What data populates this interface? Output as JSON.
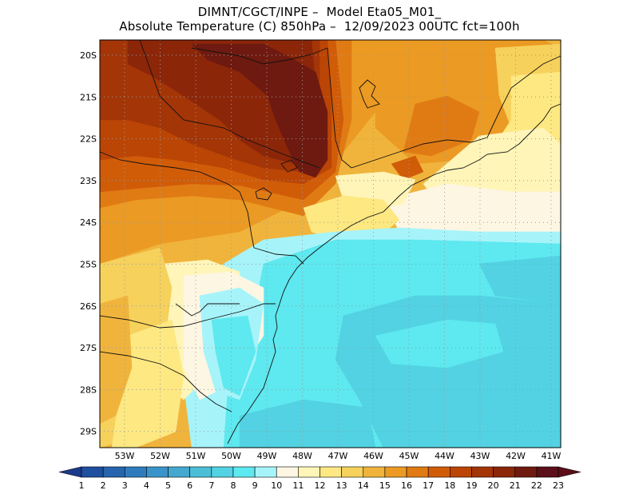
{
  "title": {
    "line1": "DIMNT/CGCT/INPE –  Model Eta05_M01_",
    "line2": "Absolute Temperature (C) 850hPa –  12/09/2023 00UTC fct=100h"
  },
  "map": {
    "lat_labels": [
      "20S",
      "21S",
      "22S",
      "23S",
      "24S",
      "25S",
      "26S",
      "27S",
      "28S",
      "29S"
    ],
    "lon_labels": [
      "53W",
      "52W",
      "51W",
      "50W",
      "49W",
      "48W",
      "47W",
      "46W",
      "45W",
      "44W",
      "43W",
      "42W",
      "41W"
    ]
  },
  "colorbar": {
    "levels": [
      "1",
      "2",
      "3",
      "4",
      "5",
      "6",
      "7",
      "8",
      "9",
      "10",
      "11",
      "12",
      "13",
      "14",
      "15",
      "16",
      "17",
      "18",
      "19",
      "20",
      "21",
      "22",
      "23"
    ],
    "colors": [
      "#1b3a8c",
      "#1f4f9f",
      "#2664ad",
      "#2f7cbd",
      "#3a94c9",
      "#45a9cf",
      "#4cbfd6",
      "#52d2e2",
      "#5ee8ef",
      "#a6f4fa",
      "#fdf6e3",
      "#fff5b8",
      "#fde882",
      "#f6d15c",
      "#f0b43c",
      "#eb9a23",
      "#e07b14",
      "#d15c08",
      "#bb4505",
      "#a33507",
      "#8b2609",
      "#6e1a10",
      "#5a0f1a"
    ]
  },
  "layer_colors": {
    "t10": "#a6f4fa",
    "t9": "#5ee8ef",
    "t8": "#52d2e2",
    "t11": "#fdf6e3",
    "t12": "#fff5b8",
    "t13": "#fde882",
    "t14": "#f6d15c",
    "t15": "#f0b43c",
    "t16": "#eb9a23",
    "t17": "#e07b14",
    "t18": "#d15c08",
    "t19": "#bb4505",
    "t20": "#a33507",
    "t21": "#8b2609",
    "t22": "#6e1a10"
  }
}
